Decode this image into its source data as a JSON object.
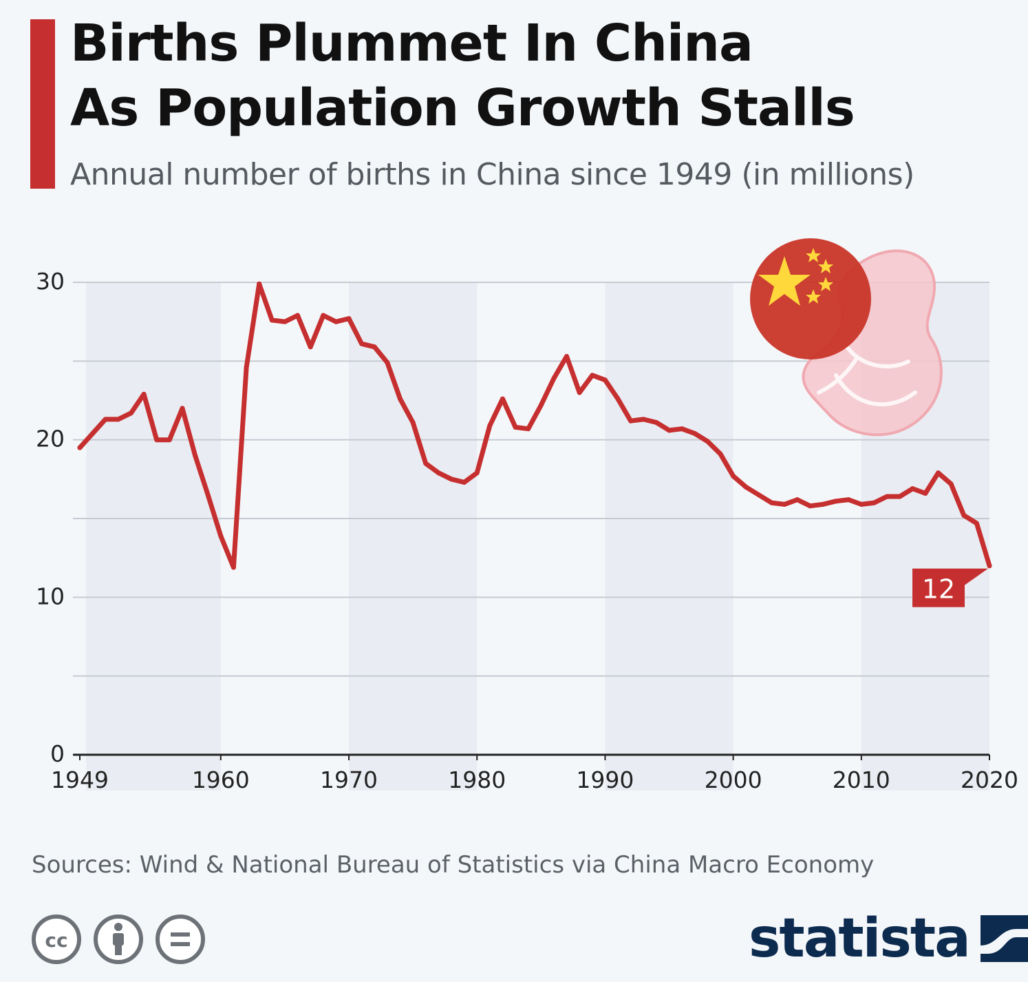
{
  "header": {
    "title_line1": "Births Plummet In China",
    "title_line2": "As Population Growth Stalls",
    "subtitle": "Annual number of births in China since 1949 (in millions)"
  },
  "footer": {
    "source": "Sources: Wind & National Bureau of Statistics via China Macro Economy",
    "license_icons": [
      "creative-commons-icon",
      "attribution-icon",
      "no-derivatives-icon"
    ],
    "brand": "statista"
  },
  "colors": {
    "accent": "#c62f2f",
    "line": "#c62f2f",
    "band": "#e9ecf2",
    "brand": "#0d2b4f"
  },
  "chart_data": {
    "type": "line",
    "title": "Births Plummet In China As Population Growth Stalls",
    "subtitle": "Annual number of births in China since 1949 (in millions)",
    "xlim": [
      1949,
      2020
    ],
    "ylim": [
      0,
      30
    ],
    "x_ticks": [
      "1949",
      "1960",
      "1970",
      "1980",
      "1990",
      "2000",
      "2010",
      "2020"
    ],
    "y_ticks": [
      "0",
      "10",
      "20",
      "30"
    ],
    "grid": "horizontal gridlines every 5 with alternating decade bands",
    "legend": "none",
    "end_label": "12",
    "series": [
      {
        "x": [
          1949,
          1950,
          1951,
          1952,
          1953,
          1954,
          1955,
          1956,
          1957,
          1958,
          1959,
          1960,
          1961,
          1962,
          1963,
          1964,
          1965,
          1966,
          1967,
          1968,
          1969,
          1970,
          1971,
          1972,
          1973,
          1974,
          1975,
          1976,
          1977,
          1978,
          1979,
          1980,
          1981,
          1982,
          1983,
          1984,
          1985,
          1986,
          1987,
          1988,
          1989,
          1990,
          1991,
          1992,
          1993,
          1994,
          1995,
          1996,
          1997,
          1998,
          1999,
          2000,
          2001,
          2002,
          2003,
          2004,
          2005,
          2006,
          2007,
          2008,
          2009,
          2010,
          2011,
          2012,
          2013,
          2014,
          2015,
          2016,
          2017,
          2018,
          2019,
          2020
        ],
        "values": [
          19.5,
          20.4,
          21.3,
          21.3,
          21.7,
          22.9,
          20.0,
          20.0,
          22.0,
          19.0,
          16.5,
          13.9,
          11.9,
          24.6,
          29.9,
          27.6,
          27.5,
          27.9,
          25.9,
          27.9,
          27.5,
          27.7,
          26.1,
          25.9,
          24.9,
          22.6,
          21.1,
          18.5,
          17.9,
          17.5,
          17.3,
          17.9,
          20.9,
          22.6,
          20.8,
          20.7,
          22.2,
          23.9,
          25.3,
          23.0,
          24.1,
          23.8,
          22.6,
          21.2,
          21.3,
          21.1,
          20.6,
          20.7,
          20.4,
          19.9,
          19.1,
          17.7,
          17.0,
          16.5,
          16.0,
          15.9,
          16.2,
          15.8,
          15.9,
          16.1,
          16.2,
          15.9,
          16.0,
          16.4,
          16.4,
          16.9,
          16.6,
          17.9,
          17.2,
          15.2,
          14.7,
          12.0
        ]
      }
    ]
  }
}
